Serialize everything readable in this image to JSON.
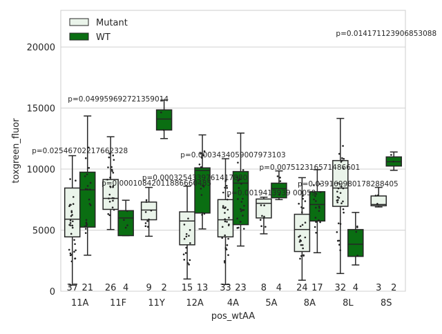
{
  "colors": {
    "mutant_fill": "#eaf4ea",
    "wt_fill": "#0a6e12",
    "grid": "#d0d0d0",
    "axis": "#cccccc",
    "line": "#262626"
  },
  "chart_data": {
    "type": "box",
    "xlabel": "pos_wtAA",
    "ylabel": "toxgreen_fluor",
    "ylim": [
      0,
      23000
    ],
    "yticks": [
      0,
      5000,
      10000,
      15000,
      20000
    ],
    "categories": [
      "11A",
      "11F",
      "11Y",
      "12A",
      "4A",
      "5A",
      "8A",
      "8L",
      "8S"
    ],
    "grid": true,
    "legend_position": "top-left",
    "series": [
      {
        "name": "Mutant",
        "color": "#eaf4ea",
        "boxes": [
          {
            "q1": 4450,
            "median": 5900,
            "q3": 8450,
            "whislo": 500,
            "whishi": 11100
          },
          {
            "q1": 6700,
            "median": 7600,
            "q3": 9150,
            "whislo": 5050,
            "whishi": 12650
          },
          {
            "q1": 5850,
            "median": 6650,
            "q3": 7300,
            "whislo": 4500,
            "whishi": 8500
          },
          {
            "q1": 3800,
            "median": 5750,
            "q3": 6500,
            "whislo": 1000,
            "whishi": 8600
          },
          {
            "q1": 4450,
            "median": 5850,
            "q3": 7500,
            "whislo": 550,
            "whishi": 10850
          },
          {
            "q1": 6000,
            "median": 7200,
            "q3": 7550,
            "whislo": 4700,
            "whishi": 7700
          },
          {
            "q1": 3250,
            "median": 5050,
            "q3": 6300,
            "whislo": 900,
            "whishi": 9300
          },
          {
            "q1": 6950,
            "median": 8450,
            "q3": 10700,
            "whislo": 1450,
            "whishi": 14150
          },
          {
            "q1": 7000,
            "median": 7100,
            "q3": 7800,
            "whislo": 6900,
            "whishi": 8500
          }
        ],
        "counts": [
          "37",
          "26",
          "9",
          "15",
          "33",
          "8",
          "24",
          "32",
          "3"
        ]
      },
      {
        "name": "WT",
        "color": "#0a6e12",
        "boxes": [
          {
            "q1": 5250,
            "median": 8300,
            "q3": 9750,
            "whislo": 2950,
            "whishi": 14350
          },
          {
            "q1": 4550,
            "median": 6000,
            "q3": 6600,
            "whislo": 4550,
            "whishi": 7450
          },
          {
            "q1": 13200,
            "median": 14100,
            "q3": 14850,
            "whislo": 12500,
            "whishi": 15650
          },
          {
            "q1": 6400,
            "median": 9900,
            "q3": 10100,
            "whislo": 5100,
            "whishi": 12800
          },
          {
            "q1": 5450,
            "median": 8850,
            "q3": 9800,
            "whislo": 3700,
            "whishi": 12950
          },
          {
            "q1": 7650,
            "median": 8400,
            "q3": 8850,
            "whislo": 7500,
            "whishi": 9850
          },
          {
            "q1": 5750,
            "median": 7100,
            "q3": 8150,
            "whislo": 3150,
            "whishi": 9950
          },
          {
            "q1": 2850,
            "median": 3850,
            "q3": 5050,
            "whislo": 2150,
            "whishi": 6450
          },
          {
            "q1": 10250,
            "median": 10600,
            "q3": 11000,
            "whislo": 9900,
            "whishi": 11400
          }
        ],
        "counts": [
          "21",
          "4",
          "2",
          "13",
          "23",
          "4",
          "17",
          "4",
          "2"
        ]
      }
    ],
    "annotations": [
      {
        "category": "11A",
        "text": "p=0.025467022176623​28",
        "y": 11300
      },
      {
        "category": "11F",
        "text": "p=0.049959692721359014",
        "y": 15550
      },
      {
        "category": "11Y",
        "text": "p=0.00010842011886660485",
        "y": 8650
      },
      {
        "category": "12A",
        "text": "p=0.0003254339761417880",
        "y": 9100
      },
      {
        "category": "4A",
        "text": "p=0.0003434059007973103",
        "y": 10950
      },
      {
        "category": "5A",
        "text": "p=0.0019413939 00059",
        "y": 7850
      },
      {
        "category": "8A",
        "text": "p=0.007512316571486601",
        "y": 9950
      },
      {
        "category": "8L",
        "text": "p=0.03916998017828840​5",
        "y": 8600
      },
      {
        "category": "8S",
        "text": "p=0.01417112390685308​8",
        "y": 20900
      }
    ]
  }
}
